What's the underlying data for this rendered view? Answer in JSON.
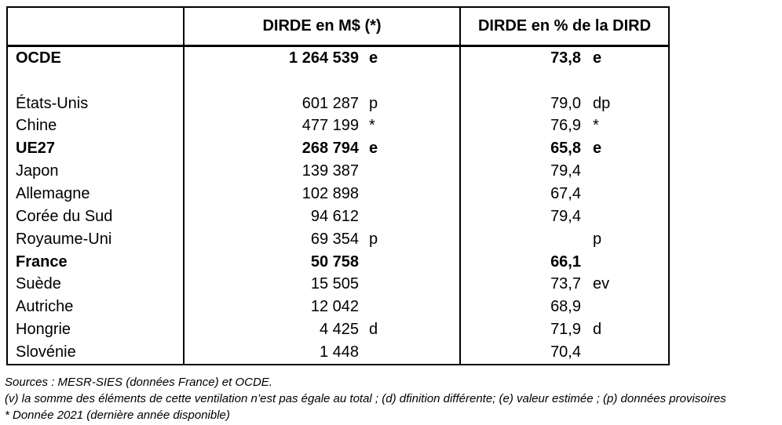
{
  "table": {
    "header": {
      "col1": "",
      "col2": "DIRDE en M$ (*)",
      "col3": "DIRDE en % de la DIRD"
    },
    "rows": [
      {
        "label": "OCDE",
        "bold": true,
        "dirde_m": "1 264 539",
        "dirde_m_flag": "e",
        "dirde_pct": "73,8",
        "dirde_pct_flag": "e"
      },
      {
        "label": "",
        "bold": false,
        "dirde_m": "",
        "dirde_m_flag": "",
        "dirde_pct": "",
        "dirde_pct_flag": ""
      },
      {
        "label": "États-Unis",
        "bold": false,
        "dirde_m": "601 287",
        "dirde_m_flag": "p",
        "dirde_pct": "79,0",
        "dirde_pct_flag": "dp"
      },
      {
        "label": "Chine",
        "bold": false,
        "dirde_m": "477 199",
        "dirde_m_flag": "*",
        "dirde_pct": "76,9",
        "dirde_pct_flag": "*"
      },
      {
        "label": "UE27",
        "bold": true,
        "dirde_m": "268 794",
        "dirde_m_flag": "e",
        "dirde_pct": "65,8",
        "dirde_pct_flag": "e"
      },
      {
        "label": "Japon",
        "bold": false,
        "dirde_m": "139 387",
        "dirde_m_flag": "",
        "dirde_pct": "79,4",
        "dirde_pct_flag": ""
      },
      {
        "label": "Allemagne",
        "bold": false,
        "dirde_m": "102 898",
        "dirde_m_flag": "",
        "dirde_pct": "67,4",
        "dirde_pct_flag": ""
      },
      {
        "label": "Corée du Sud",
        "bold": false,
        "dirde_m": "94 612",
        "dirde_m_flag": "",
        "dirde_pct": "79,4",
        "dirde_pct_flag": ""
      },
      {
        "label": "Royaume-Uni",
        "bold": false,
        "dirde_m": "69 354",
        "dirde_m_flag": "p",
        "dirde_pct": "",
        "dirde_pct_flag": "p"
      },
      {
        "label": "France",
        "bold": true,
        "dirde_m": "50 758",
        "dirde_m_flag": "",
        "dirde_pct": "66,1",
        "dirde_pct_flag": ""
      },
      {
        "label": "Suède",
        "bold": false,
        "dirde_m": "15 505",
        "dirde_m_flag": "",
        "dirde_pct": "73,7",
        "dirde_pct_flag": "ev"
      },
      {
        "label": "Autriche",
        "bold": false,
        "dirde_m": "12 042",
        "dirde_m_flag": "",
        "dirde_pct": "68,9",
        "dirde_pct_flag": ""
      },
      {
        "label": "Hongrie",
        "bold": false,
        "dirde_m": "4 425",
        "dirde_m_flag": "d",
        "dirde_pct": "71,9",
        "dirde_pct_flag": "d"
      },
      {
        "label": "Slovénie",
        "bold": false,
        "dirde_m": "1 448",
        "dirde_m_flag": "",
        "dirde_pct": "70,4",
        "dirde_pct_flag": ""
      }
    ]
  },
  "footnotes": {
    "line1": "Sources : MESR-SIES (données France) et OCDE.",
    "line2": "(v) la somme des éléments de cette ventilation n’est pas égale au total ; (d) dfinition différente; (e) valeur estimée ; (p) données provisoires",
    "line3": "* Donnée 2021  (dernière année disponible)"
  }
}
